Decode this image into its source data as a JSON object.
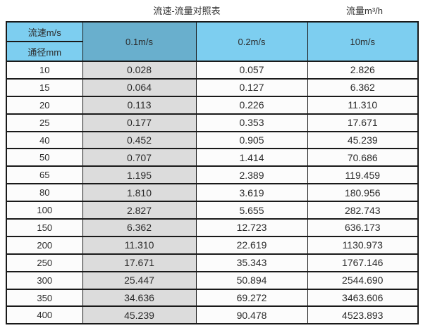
{
  "titles": {
    "main": "流速-流量对照表",
    "right": "流量m³/h"
  },
  "table": {
    "corner_top": "流速m/s",
    "corner_bottom": "通径mm",
    "velocity_columns": [
      "0.1m/s",
      "0.2m/s",
      "10m/s"
    ],
    "rows": [
      {
        "diameter": "10",
        "values": [
          "0.028",
          "0.057",
          "2.826"
        ]
      },
      {
        "diameter": "15",
        "values": [
          "0.064",
          "0.127",
          "6.362"
        ]
      },
      {
        "diameter": "20",
        "values": [
          "0.113",
          "0.226",
          "11.310"
        ]
      },
      {
        "diameter": "25",
        "values": [
          "0.177",
          "0.353",
          "17.671"
        ]
      },
      {
        "diameter": "40",
        "values": [
          "0.452",
          "0.905",
          "45.239"
        ]
      },
      {
        "diameter": "50",
        "values": [
          "0.707",
          "1.414",
          "70.686"
        ]
      },
      {
        "diameter": "65",
        "values": [
          "1.195",
          "2.389",
          "119.459"
        ]
      },
      {
        "diameter": "80",
        "values": [
          "1.810",
          "3.619",
          "180.956"
        ]
      },
      {
        "diameter": "100",
        "values": [
          "2.827",
          "5.655",
          "282.743"
        ]
      },
      {
        "diameter": "150",
        "values": [
          "6.362",
          "12.723",
          "636.173"
        ]
      },
      {
        "diameter": "200",
        "values": [
          "11.310",
          "22.619",
          "1130.973"
        ]
      },
      {
        "diameter": "250",
        "values": [
          "17.671",
          "35.343",
          "1767.146"
        ]
      },
      {
        "diameter": "300",
        "values": [
          "25.447",
          "50.894",
          "2544.690"
        ]
      },
      {
        "diameter": "350",
        "values": [
          "34.636",
          "69.272",
          "3463.606"
        ]
      },
      {
        "diameter": "400",
        "values": [
          "45.239",
          "90.478",
          "4523.893"
        ]
      }
    ]
  },
  "colors": {
    "header_blue": "#7dcef0",
    "header_selected_blue": "#69afcd",
    "highlight_gray_column": "#dcdcdc",
    "border": "#1a1a1a"
  },
  "chart_data": {
    "type": "table",
    "title": "流速-流量对照表",
    "value_unit_label": "流量m³/h",
    "row_header": "通径mm",
    "column_header": "流速m/s",
    "columns_velocity_m_per_s": [
      0.1,
      0.2,
      10
    ],
    "rows_diameter_mm": [
      10,
      15,
      20,
      25,
      40,
      50,
      65,
      80,
      100,
      150,
      200,
      250,
      300,
      350,
      400
    ],
    "values_flow_m3_per_h": [
      [
        0.028,
        0.057,
        2.826
      ],
      [
        0.064,
        0.127,
        6.362
      ],
      [
        0.113,
        0.226,
        11.31
      ],
      [
        0.177,
        0.353,
        17.671
      ],
      [
        0.452,
        0.905,
        45.239
      ],
      [
        0.707,
        1.414,
        70.686
      ],
      [
        1.195,
        2.389,
        119.459
      ],
      [
        1.81,
        3.619,
        180.956
      ],
      [
        2.827,
        5.655,
        282.743
      ],
      [
        6.362,
        12.723,
        636.173
      ],
      [
        11.31,
        22.619,
        1130.973
      ],
      [
        17.671,
        35.343,
        1767.146
      ],
      [
        25.447,
        50.894,
        2544.69
      ],
      [
        34.636,
        69.272,
        3463.606
      ],
      [
        45.239,
        90.478,
        4523.893
      ]
    ]
  }
}
